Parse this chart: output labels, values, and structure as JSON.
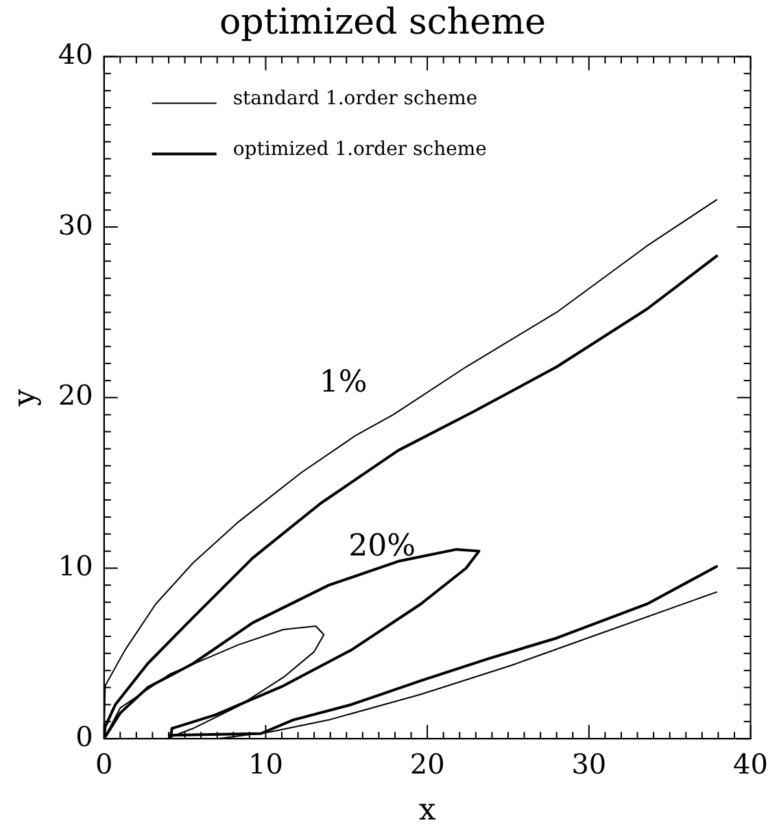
{
  "chart_data": {
    "type": "line",
    "title": "optimized scheme",
    "xlabel": "x",
    "ylabel": "y",
    "xlim": [
      0,
      40
    ],
    "ylim": [
      0,
      40
    ],
    "xticks": [
      0,
      {
        "value": 1,
        "label": null
      },
      {
        "value": 2,
        "label": null
      },
      {
        "value": 3,
        "label": null
      },
      {
        "value": 4,
        "label": null
      },
      {
        "value": 5,
        "label": null
      },
      {
        "value": 6,
        "label": null
      },
      {
        "value": 7,
        "label": null
      },
      {
        "value": 8,
        "label": null
      },
      {
        "value": 9,
        "label": null
      },
      10,
      {
        "value": 11,
        "label": null
      },
      {
        "value": 12,
        "label": null
      },
      {
        "value": 13,
        "label": null
      },
      {
        "value": 14,
        "label": null
      },
      {
        "value": 15,
        "label": null
      },
      {
        "value": 16,
        "label": null
      },
      {
        "value": 17,
        "label": null
      },
      {
        "value": 18,
        "label": null
      },
      {
        "value": 19,
        "label": null
      },
      20,
      {
        "value": 21,
        "label": null
      },
      {
        "value": 22,
        "label": null
      },
      {
        "value": 23,
        "label": null
      },
      {
        "value": 24,
        "label": null
      },
      {
        "value": 25,
        "label": null
      },
      {
        "value": 26,
        "label": null
      },
      {
        "value": 27,
        "label": null
      },
      {
        "value": 28,
        "label": null
      },
      {
        "value": 29,
        "label": null
      },
      30,
      {
        "value": 31,
        "label": null
      },
      {
        "value": 32,
        "label": null
      },
      {
        "value": 33,
        "label": null
      },
      {
        "value": 34,
        "label": null
      },
      {
        "value": 35,
        "label": null
      },
      {
        "value": 36,
        "label": null
      },
      {
        "value": 37,
        "label": null
      },
      {
        "value": 38,
        "label": null
      },
      {
        "value": 39,
        "label": null
      },
      40
    ],
    "yticks": [
      0,
      {
        "value": 1,
        "label": null
      },
      {
        "value": 2,
        "label": null
      },
      {
        "value": 3,
        "label": null
      },
      {
        "value": 4,
        "label": null
      },
      {
        "value": 5,
        "label": null
      },
      {
        "value": 6,
        "label": null
      },
      {
        "value": 7,
        "label": null
      },
      {
        "value": 8,
        "label": null
      },
      {
        "value": 9,
        "label": null
      },
      10,
      {
        "value": 11,
        "label": null
      },
      {
        "value": 12,
        "label": null
      },
      {
        "value": 13,
        "label": null
      },
      {
        "value": 14,
        "label": null
      },
      {
        "value": 15,
        "label": null
      },
      {
        "value": 16,
        "label": null
      },
      {
        "value": 17,
        "label": null
      },
      {
        "value": 18,
        "label": null
      },
      {
        "value": 19,
        "label": null
      },
      20,
      {
        "value": 21,
        "label": null
      },
      {
        "value": 22,
        "label": null
      },
      {
        "value": 23,
        "label": null
      },
      {
        "value": 24,
        "label": null
      },
      {
        "value": 25,
        "label": null
      },
      {
        "value": 26,
        "label": null
      },
      {
        "value": 27,
        "label": null
      },
      {
        "value": 28,
        "label": null
      },
      {
        "value": 29,
        "label": null
      },
      30,
      {
        "value": 31,
        "label": null
      },
      {
        "value": 32,
        "label": null
      },
      {
        "value": 33,
        "label": null
      },
      {
        "value": 34,
        "label": null
      },
      {
        "value": 35,
        "label": null
      },
      {
        "value": 36,
        "label": null
      },
      {
        "value": 37,
        "label": null
      },
      {
        "value": 38,
        "label": null
      },
      {
        "value": 39,
        "label": null
      },
      40
    ],
    "series": [
      {
        "name": "standard 1.order scheme",
        "color": "#000000",
        "x": [
          0,
          0.07,
          1.3,
          3.2,
          5.5,
          8.3,
          12.2,
          15.6,
          17.9,
          22.4,
          28,
          33.6,
          37.9,
          null,
          0,
          1.0,
          4.1,
          8.3,
          11.1,
          13.1,
          13.6,
          13.0,
          11.1,
          8.3,
          5.5,
          4.1,
          null,
          4.1,
          7,
          10.3,
          13.9,
          19.6,
          25.2,
          30.8,
          37.9
        ],
        "values": [
          0,
          3.1,
          5.2,
          7.9,
          10.3,
          12.7,
          15.6,
          17.8,
          19.0,
          21.8,
          25.0,
          28.9,
          31.6,
          null,
          0,
          1.8,
          3.8,
          5.5,
          6.4,
          6.6,
          6.1,
          5.1,
          3.6,
          1.9,
          0.6,
          0.1,
          null,
          0,
          0,
          0.4,
          1.1,
          2.6,
          4.3,
          6.2,
          8.6
        ]
      },
      {
        "name": "optimized 1.order scheme",
        "color": "#000000",
        "x": [
          0,
          0.07,
          0.7,
          2.7,
          5.5,
          9.2,
          13.4,
          18.2,
          22.9,
          28,
          33.6,
          37.9,
          null,
          0,
          1.0,
          2.7,
          5.5,
          9.2,
          13.9,
          18.2,
          21.8,
          23.2,
          22.4,
          19.6,
          15.3,
          11.1,
          6.9,
          4.2,
          4.1,
          null,
          4.1,
          9.7,
          11.7,
          15.3,
          19.6,
          23.8,
          28,
          33.6,
          37.9
        ],
        "values": [
          0,
          0.7,
          2.0,
          4.4,
          7.1,
          10.6,
          13.8,
          16.9,
          19.2,
          21.8,
          25.2,
          28.3,
          null,
          0,
          1.5,
          3.0,
          4.4,
          6.8,
          9.0,
          10.4,
          11.1,
          11.0,
          10.0,
          7.9,
          5.2,
          3.1,
          1.4,
          0.6,
          0,
          null,
          0.2,
          0.3,
          1.1,
          2.0,
          3.4,
          4.7,
          5.9,
          7.9,
          10.1
        ]
      }
    ],
    "annotations": [
      "1%",
      "20%"
    ],
    "legend": "top left",
    "marker": "none",
    "line_style": "solid",
    "grid": false
  }
}
